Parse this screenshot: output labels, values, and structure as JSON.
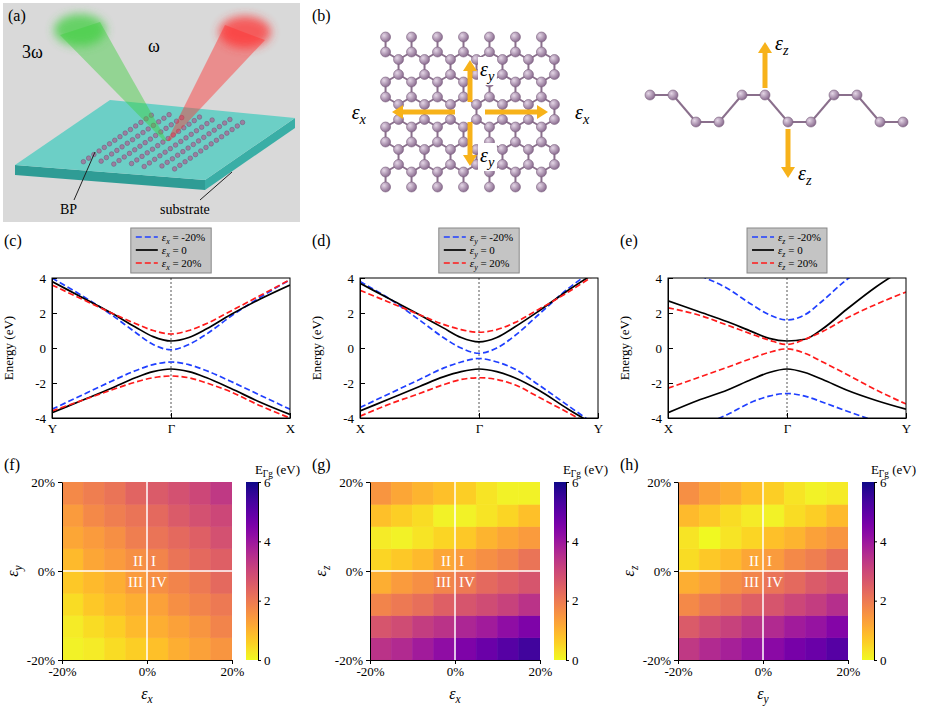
{
  "illustration": {
    "panel": "(a)",
    "beams": [
      "3ω",
      "ω"
    ],
    "material": "BP",
    "substrate": "substrate"
  },
  "lattice": {
    "panel": "(b)",
    "top_view": [
      "εx",
      "εx",
      "εy",
      "εy"
    ],
    "side_view": [
      "εz",
      "εz"
    ]
  },
  "chart_data": [
    {
      "type": "line",
      "panel": "(c)",
      "y_label": "Energy (eV)",
      "legend": "above",
      "x": [
        -1,
        -0.75,
        -0.5,
        -0.3,
        -0.15,
        0,
        0.15,
        0.3,
        0.5,
        0.75,
        1
      ],
      "xlim": [
        -1,
        1
      ],
      "xticks": [
        {
          "value": -1,
          "label": "Y"
        },
        {
          "value": 0,
          "label": "Γ"
        },
        {
          "value": 1,
          "label": "X"
        }
      ],
      "ylim": [
        -4,
        4
      ],
      "yticks": [
        -4,
        -2,
        0,
        2,
        4
      ],
      "series": [
        {
          "name": "εx = -20%",
          "color": "#1f3fff",
          "line_style": "dashed",
          "bands": [
            {
              "values": [
                4.0,
                3.0,
                1.9,
                0.9,
                0.2,
                -0.1,
                0.2,
                0.8,
                1.8,
                2.9,
                3.9
              ]
            },
            {
              "values": [
                -3.5,
                -2.7,
                -1.9,
                -1.3,
                -0.95,
                -0.8,
                -0.95,
                -1.3,
                -1.9,
                -2.7,
                -3.5
              ]
            }
          ]
        },
        {
          "name": "εx = 0",
          "color": "#000000",
          "line_style": "solid",
          "bands": [
            {
              "values": [
                3.8,
                2.9,
                2.0,
                1.2,
                0.65,
                0.4,
                0.6,
                1.1,
                1.9,
                2.8,
                3.6
              ]
            },
            {
              "values": [
                -3.7,
                -3.0,
                -2.3,
                -1.7,
                -1.35,
                -1.2,
                -1.35,
                -1.7,
                -2.3,
                -3.1,
                -3.8
              ]
            }
          ]
        },
        {
          "name": "εx = 20%",
          "color": "#ff1a1a",
          "line_style": "dashed",
          "bands": [
            {
              "values": [
                3.6,
                2.8,
                2.0,
                1.4,
                1.0,
                0.8,
                1.0,
                1.4,
                2.1,
                3.0,
                3.9
              ]
            },
            {
              "values": [
                -3.6,
                -3.0,
                -2.4,
                -1.95,
                -1.7,
                -1.6,
                -1.7,
                -2.0,
                -2.5,
                -3.3,
                -4.0
              ]
            }
          ]
        }
      ]
    },
    {
      "type": "line",
      "panel": "(d)",
      "y_label": "Energy (eV)",
      "legend": "above",
      "x": [
        -1,
        -0.75,
        -0.5,
        -0.3,
        -0.15,
        0,
        0.15,
        0.3,
        0.5,
        0.75,
        1
      ],
      "xlim": [
        -1,
        1
      ],
      "xticks": [
        {
          "value": -1,
          "label": "X"
        },
        {
          "value": 0,
          "label": "Γ"
        },
        {
          "value": 1,
          "label": "Y"
        }
      ],
      "ylim": [
        -4,
        4
      ],
      "yticks": [
        -4,
        -2,
        0,
        2,
        4
      ],
      "series": [
        {
          "name": "εy = -20%",
          "color": "#1f3fff",
          "line_style": "dashed",
          "bands": [
            {
              "values": [
                3.8,
                2.8,
                1.6,
                0.6,
                0.0,
                -0.3,
                0.0,
                0.7,
                1.9,
                3.4,
                4.6
              ]
            },
            {
              "values": [
                -3.4,
                -2.6,
                -1.8,
                -1.15,
                -0.8,
                -0.6,
                -0.8,
                -1.2,
                -2.1,
                -3.3,
                -4.5
              ]
            }
          ]
        },
        {
          "name": "εy = 0",
          "color": "#000000",
          "line_style": "solid",
          "bands": [
            {
              "values": [
                3.7,
                2.8,
                1.9,
                1.15,
                0.6,
                0.35,
                0.6,
                1.2,
                2.1,
                3.3,
                4.4
              ]
            },
            {
              "values": [
                -3.6,
                -2.9,
                -2.2,
                -1.65,
                -1.35,
                -1.2,
                -1.35,
                -1.7,
                -2.4,
                -3.5,
                -4.5
              ]
            }
          ]
        },
        {
          "name": "εy = 20%",
          "color": "#ff1a1a",
          "line_style": "dashed",
          "bands": [
            {
              "values": [
                3.3,
                2.6,
                1.9,
                1.35,
                1.05,
                0.9,
                1.05,
                1.45,
                2.2,
                3.2,
                4.3
              ]
            },
            {
              "values": [
                -3.9,
                -3.2,
                -2.6,
                -2.1,
                -1.8,
                -1.7,
                -1.8,
                -2.1,
                -2.8,
                -3.7,
                -4.6
              ]
            }
          ]
        }
      ]
    },
    {
      "type": "line",
      "panel": "(e)",
      "y_label": "Energy (eV)",
      "legend": "above",
      "x": [
        -1,
        -0.75,
        -0.5,
        -0.3,
        -0.15,
        0,
        0.15,
        0.3,
        0.5,
        0.75,
        1
      ],
      "xlim": [
        -1,
        1
      ],
      "xticks": [
        {
          "value": -1,
          "label": "X"
        },
        {
          "value": 0,
          "label": "Γ"
        },
        {
          "value": 1,
          "label": "Y"
        }
      ],
      "ylim": [
        -4,
        4
      ],
      "yticks": [
        -4,
        -2,
        0,
        2,
        4
      ],
      "series": [
        {
          "name": "εz = -20%",
          "color": "#1f3fff",
          "line_style": "dashed",
          "bands": [
            {
              "values": [
                5.0,
                4.2,
                3.4,
                2.5,
                1.9,
                1.6,
                1.9,
                2.7,
                3.9,
                5.0,
                6.0
              ]
            },
            {
              "values": [
                -5.2,
                -4.5,
                -3.8,
                -3.1,
                -2.75,
                -2.6,
                -2.75,
                -3.1,
                -3.6,
                -4.2,
                -4.8
              ]
            }
          ]
        },
        {
          "name": "εz = 0",
          "color": "#000000",
          "line_style": "solid",
          "bands": [
            {
              "values": [
                2.7,
                2.1,
                1.5,
                0.95,
                0.55,
                0.4,
                0.5,
                1.1,
                2.2,
                3.5,
                4.6
              ]
            },
            {
              "values": [
                -3.7,
                -3.0,
                -2.4,
                -1.8,
                -1.4,
                -1.2,
                -1.4,
                -1.8,
                -2.4,
                -3.0,
                -3.5
              ]
            }
          ]
        },
        {
          "name": "εz = 20%",
          "color": "#ff1a1a",
          "line_style": "dashed",
          "bands": [
            {
              "values": [
                2.3,
                1.9,
                1.3,
                0.8,
                0.45,
                0.2,
                0.5,
                0.95,
                1.7,
                2.5,
                3.2
              ]
            },
            {
              "values": [
                -2.3,
                -1.7,
                -1.1,
                -0.6,
                -0.25,
                -0.05,
                -0.3,
                -0.8,
                -1.5,
                -2.4,
                -3.2
              ]
            }
          ]
        }
      ]
    },
    {
      "type": "heatmap",
      "panel": "(f)",
      "x_label": "εx",
      "y_label": "εy",
      "xlim": [
        -20,
        20
      ],
      "ylim": [
        -20,
        20
      ],
      "xticks": [
        {
          "value": -20,
          "label": "-20%"
        },
        {
          "value": 0,
          "label": "0%"
        },
        {
          "value": 20,
          "label": "20%"
        }
      ],
      "yticks": [
        {
          "value": -20,
          "label": "-20%"
        },
        {
          "value": 0,
          "label": "0%"
        },
        {
          "value": 20,
          "label": "20%"
        }
      ],
      "x_edges": [
        -20,
        -15,
        -10,
        -5,
        0,
        5,
        10,
        15,
        20
      ],
      "y_edges": [
        -20,
        -15,
        -10,
        -5,
        0,
        5,
        10,
        15,
        20
      ],
      "cells": [
        [
          0.1,
          0.2,
          0.4,
          0.6,
          0.8,
          1.1,
          1.3,
          1.5
        ],
        [
          0.2,
          0.4,
          0.6,
          0.9,
          1.1,
          1.3,
          1.5,
          1.8
        ],
        [
          0.4,
          0.7,
          0.9,
          1.1,
          1.3,
          1.6,
          1.8,
          2.0
        ],
        [
          0.7,
          0.9,
          1.1,
          1.4,
          1.6,
          1.8,
          2.0,
          2.3
        ],
        [
          0.9,
          1.2,
          1.4,
          1.6,
          1.8,
          2.1,
          2.3,
          2.5
        ],
        [
          1.2,
          1.4,
          1.6,
          1.9,
          2.1,
          2.3,
          2.5,
          2.8
        ],
        [
          1.4,
          1.7,
          1.9,
          2.1,
          2.3,
          2.6,
          2.8,
          3.0
        ],
        [
          1.7,
          1.9,
          2.1,
          2.4,
          2.6,
          2.8,
          3.0,
          3.3
        ]
      ],
      "colorbar": {
        "label": "EΓg (eV)",
        "range": [
          0,
          6
        ],
        "ticks": [
          0,
          2,
          4,
          6
        ]
      },
      "quadrant_labels": [
        "I",
        "II",
        "III",
        "IV"
      ]
    },
    {
      "type": "heatmap",
      "panel": "(g)",
      "x_label": "εx",
      "y_label": "εz",
      "xlim": [
        -20,
        20
      ],
      "ylim": [
        -20,
        20
      ],
      "xticks": [
        {
          "value": -20,
          "label": "-20%"
        },
        {
          "value": 0,
          "label": "0%"
        },
        {
          "value": 20,
          "label": "20%"
        }
      ],
      "yticks": [
        {
          "value": -20,
          "label": "-20%"
        },
        {
          "value": 0,
          "label": "0%"
        },
        {
          "value": 20,
          "label": "20%"
        }
      ],
      "x_edges": [
        -20,
        -15,
        -10,
        -5,
        0,
        5,
        10,
        15,
        20
      ],
      "y_edges": [
        -20,
        -15,
        -10,
        -5,
        0,
        5,
        10,
        15,
        20
      ],
      "cells": [
        [
          3.4,
          3.6,
          3.9,
          4.2,
          4.5,
          4.8,
          5.1,
          5.4
        ],
        [
          2.7,
          2.9,
          3.2,
          3.4,
          3.7,
          3.9,
          4.2,
          4.5
        ],
        [
          1.8,
          2.0,
          2.2,
          2.5,
          2.7,
          2.9,
          3.1,
          3.4
        ],
        [
          1.1,
          1.4,
          1.6,
          1.8,
          2.0,
          2.3,
          2.5,
          2.7
        ],
        [
          0.5,
          0.7,
          0.9,
          1.2,
          1.4,
          1.6,
          1.8,
          2.1
        ],
        [
          0.2,
          0.1,
          0.3,
          0.5,
          0.7,
          1.0,
          1.2,
          1.4
        ],
        [
          0.8,
          0.6,
          0.4,
          0.1,
          0.1,
          0.3,
          0.5,
          0.8
        ],
        [
          1.5,
          1.2,
          1.0,
          0.8,
          0.6,
          0.3,
          0.1,
          0.1
        ]
      ],
      "colorbar": {
        "label": "EΓg (eV)",
        "range": [
          0,
          6
        ],
        "ticks": [
          0,
          2,
          4,
          6
        ]
      },
      "quadrant_labels": [
        "I",
        "II",
        "III",
        "IV"
      ]
    },
    {
      "type": "heatmap",
      "panel": "(h)",
      "x_label": "εy",
      "y_label": "εz",
      "xlim": [
        -20,
        20
      ],
      "ylim": [
        -20,
        20
      ],
      "xticks": [
        {
          "value": -20,
          "label": "-20%"
        },
        {
          "value": 0,
          "label": "0%"
        },
        {
          "value": 20,
          "label": "20%"
        }
      ],
      "yticks": [
        {
          "value": -20,
          "label": "-20%"
        },
        {
          "value": 0,
          "label": "0%"
        },
        {
          "value": 20,
          "label": "20%"
        }
      ],
      "x_edges": [
        -20,
        -15,
        -10,
        -5,
        0,
        5,
        10,
        15,
        20
      ],
      "y_edges": [
        -20,
        -15,
        -10,
        -5,
        0,
        5,
        10,
        15,
        20
      ],
      "cells": [
        [
          3.3,
          3.6,
          3.8,
          4.1,
          4.3,
          4.6,
          4.8,
          5.1
        ],
        [
          2.6,
          2.9,
          3.1,
          3.4,
          3.6,
          3.9,
          4.1,
          4.4
        ],
        [
          1.7,
          2.0,
          2.2,
          2.5,
          2.7,
          3.0,
          3.2,
          3.5
        ],
        [
          1.1,
          1.3,
          1.6,
          1.8,
          2.1,
          2.3,
          2.6,
          2.8
        ],
        [
          0.4,
          0.7,
          0.9,
          1.2,
          1.4,
          1.7,
          1.9,
          2.2
        ],
        [
          0.3,
          0.0,
          0.3,
          0.5,
          0.8,
          1.0,
          1.3,
          1.5
        ],
        [
          0.9,
          0.7,
          0.4,
          0.2,
          0.1,
          0.4,
          0.6,
          0.9
        ],
        [
          1.6,
          1.3,
          1.1,
          0.8,
          0.6,
          0.3,
          0.1,
          0.2
        ]
      ],
      "colorbar": {
        "label": "EΓg (eV)",
        "range": [
          0,
          6
        ],
        "ticks": [
          0,
          2,
          4,
          6
        ]
      },
      "quadrant_labels": [
        "I",
        "II",
        "III",
        "IV"
      ]
    }
  ]
}
